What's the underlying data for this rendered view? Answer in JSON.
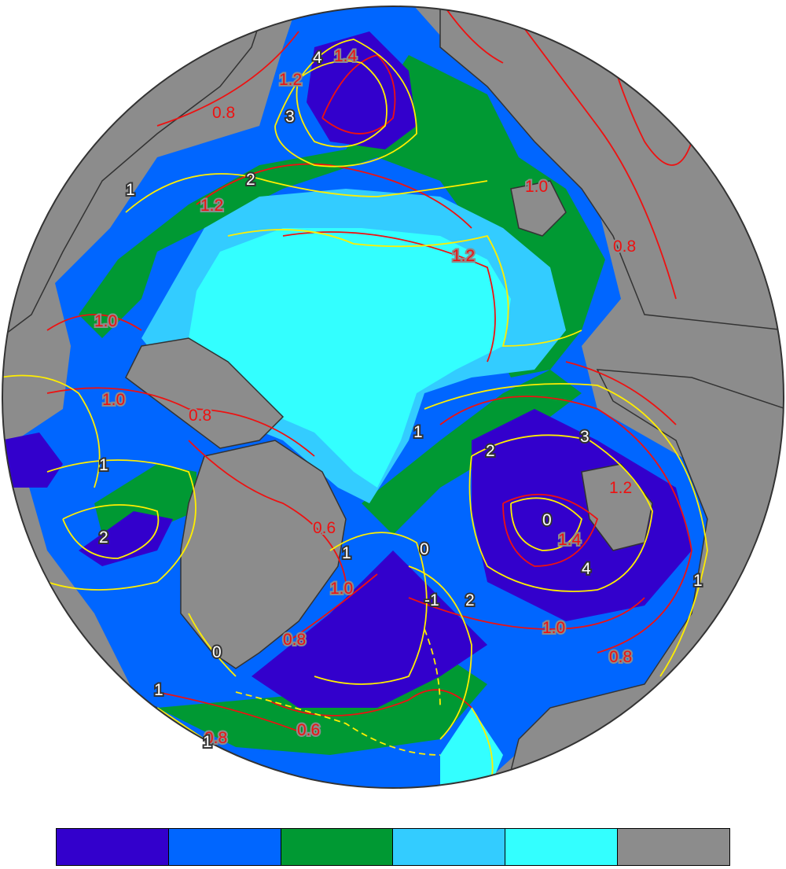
{
  "colors": {
    "land": "#8c8c8c",
    "ocean_bg": "#8c8c8c",
    "class1": "#3300cc",
    "class2": "#0066ff",
    "class3": "#009933",
    "class4": "#33ccff",
    "class5": "#33ffff",
    "class6": "#8c8c8c",
    "contour_red": "#ee1111",
    "contour_yellow": "#ffee00"
  },
  "legend": {
    "swatches": [
      {
        "color": "#3300cc"
      },
      {
        "color": "#0066ff"
      },
      {
        "color": "#009933"
      },
      {
        "color": "#33ccff"
      },
      {
        "color": "#33ffff"
      },
      {
        "color": "#8c8c8c"
      }
    ]
  },
  "red_labels": [
    "0.8",
    "1.4",
    "1.2",
    "1.2",
    "1.0",
    "1.2",
    "0.8",
    "1.0",
    "1.0",
    "0.8",
    "0.6",
    "1.2",
    "1.4",
    "1.0",
    "0.8",
    "0.8",
    "1.0",
    "0.6",
    "0.8"
  ],
  "yellow_labels": [
    "4",
    "3",
    "1",
    "2",
    "1",
    "1",
    "2",
    "2",
    "3",
    "4",
    "1",
    "0",
    "-1",
    "1",
    "0",
    "1",
    "2",
    "1",
    "0"
  ]
}
